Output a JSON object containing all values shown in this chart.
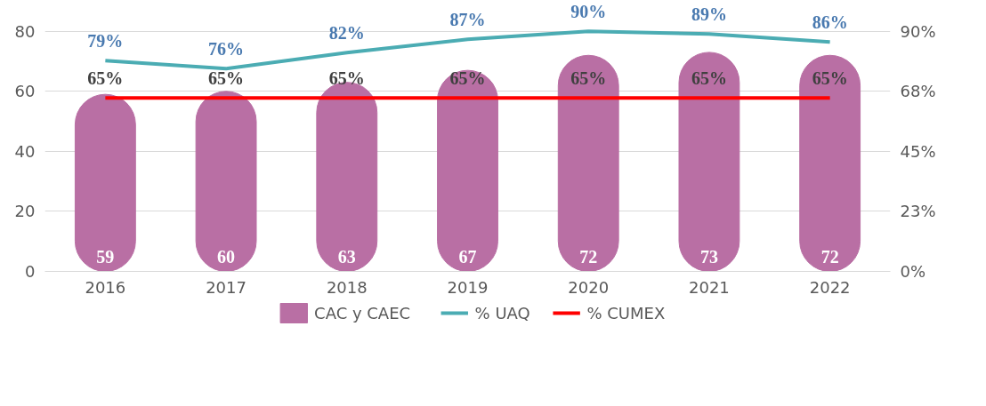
{
  "chart_data": {
    "type": "bar",
    "categories": [
      "2016",
      "2017",
      "2018",
      "2019",
      "2020",
      "2021",
      "2022"
    ],
    "ylim": [
      0,
      80
    ],
    "yticks": [
      0,
      20,
      40,
      60,
      80
    ],
    "y2lim": [
      0,
      90
    ],
    "y2ticks": [
      {
        "value": 0,
        "label": "0%"
      },
      {
        "value": 22.5,
        "label": "23%"
      },
      {
        "value": 45,
        "label": "45%"
      },
      {
        "value": 67.5,
        "label": "68%"
      },
      {
        "value": 90,
        "label": "90%"
      }
    ],
    "series": [
      {
        "name": "CAC y CAEC",
        "color": "#b96fa4",
        "values": [
          59,
          60,
          63,
          67,
          72,
          73,
          72
        ]
      },
      {
        "name": "% UAQ",
        "type": "line",
        "axis": "y2",
        "color": "#4bacb3",
        "values": [
          79,
          76,
          82,
          87,
          90,
          89,
          86
        ],
        "value_labels": [
          "79%",
          "76%",
          "82%",
          "87%",
          "90%",
          "89%",
          "86%"
        ]
      },
      {
        "name": "% CUMEX",
        "type": "line",
        "axis": "y2",
        "color": "#ff0000",
        "values": [
          65,
          65,
          65,
          65,
          65,
          65,
          65
        ],
        "value_labels": [
          "65%",
          "65%",
          "65%",
          "65%",
          "65%",
          "65%",
          "65%"
        ]
      }
    ],
    "data_labels": true,
    "grid": "y",
    "legend": "bottom"
  }
}
